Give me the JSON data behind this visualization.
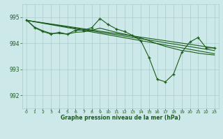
{
  "bg_color": "#cce8e8",
  "grid_color": "#aacccc",
  "line_color": "#1a5c1a",
  "title": "Graphe pression niveau de la mer (hPa)",
  "title_color": "#1a5c1a",
  "xlim": [
    -0.5,
    23.5
  ],
  "ylim": [
    991.5,
    995.5
  ],
  "yticks": [
    992,
    993,
    994,
    995
  ],
  "xticks": [
    0,
    1,
    2,
    3,
    4,
    5,
    6,
    7,
    8,
    9,
    10,
    11,
    12,
    13,
    14,
    15,
    16,
    17,
    18,
    19,
    20,
    21,
    22,
    23
  ],
  "series1_x": [
    0,
    1,
    2,
    3,
    4,
    5,
    6,
    7,
    8,
    9,
    10,
    11,
    12,
    13,
    14,
    15,
    16,
    17,
    18,
    19,
    20,
    21,
    22,
    23
  ],
  "series1_y": [
    994.9,
    994.6,
    994.45,
    994.35,
    994.42,
    994.35,
    994.5,
    994.5,
    994.6,
    994.95,
    994.72,
    994.55,
    994.45,
    994.3,
    994.1,
    993.45,
    992.62,
    992.52,
    992.82,
    993.65,
    994.05,
    994.22,
    993.82,
    993.82
  ],
  "series2_x": [
    0,
    1,
    2,
    3,
    4,
    5,
    6,
    7,
    8,
    9,
    10,
    11,
    12,
    13,
    14,
    15,
    16,
    17,
    18,
    19,
    20,
    21,
    22,
    23
  ],
  "series2_y": [
    994.9,
    994.62,
    994.48,
    994.38,
    994.38,
    994.35,
    994.42,
    994.44,
    994.5,
    994.58,
    994.5,
    994.42,
    994.35,
    994.28,
    994.2,
    994.1,
    993.98,
    993.88,
    993.8,
    993.72,
    993.68,
    993.62,
    993.58,
    993.55
  ],
  "trend1_x": [
    0,
    23
  ],
  "trend1_y": [
    994.88,
    993.82
  ],
  "trend2_x": [
    0,
    23
  ],
  "trend2_y": [
    994.88,
    993.72
  ],
  "trend3_x": [
    0,
    23
  ],
  "trend3_y": [
    994.88,
    993.6
  ]
}
